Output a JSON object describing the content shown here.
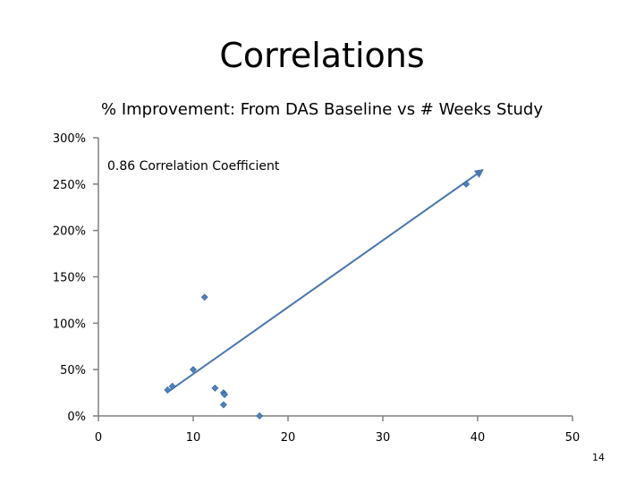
{
  "slide": {
    "title": "Correlations",
    "page_number": "14"
  },
  "chart_data": {
    "type": "scatter",
    "title": "% Improvement: From DAS Baseline vs # Weeks Study",
    "xlabel": "",
    "ylabel": "",
    "xlim": [
      0,
      50
    ],
    "ylim": [
      0,
      300
    ],
    "x_ticks": [
      0,
      10,
      20,
      30,
      40,
      50
    ],
    "y_ticks": [
      0,
      50,
      100,
      150,
      200,
      250,
      300
    ],
    "y_tick_format": "percent",
    "grid": false,
    "annotation": "0.86 Correlation Coefficient",
    "colors": {
      "points": "#4f81bd",
      "trendline": "#4a76ae",
      "axis": "#808080"
    },
    "series": [
      {
        "points": [
          {
            "x": 7.3,
            "y": 28
          },
          {
            "x": 7.8,
            "y": 32
          },
          {
            "x": 10.0,
            "y": 50
          },
          {
            "x": 11.2,
            "y": 128
          },
          {
            "x": 12.3,
            "y": 30
          },
          {
            "x": 13.2,
            "y": 25
          },
          {
            "x": 13.3,
            "y": 23
          },
          {
            "x": 13.2,
            "y": 12
          },
          {
            "x": 17.0,
            "y": 0
          },
          {
            "x": 38.8,
            "y": 250
          }
        ]
      }
    ],
    "trendline": {
      "from": {
        "x": 7.2,
        "y": 25
      },
      "to": {
        "x": 40.5,
        "y": 265
      }
    }
  }
}
